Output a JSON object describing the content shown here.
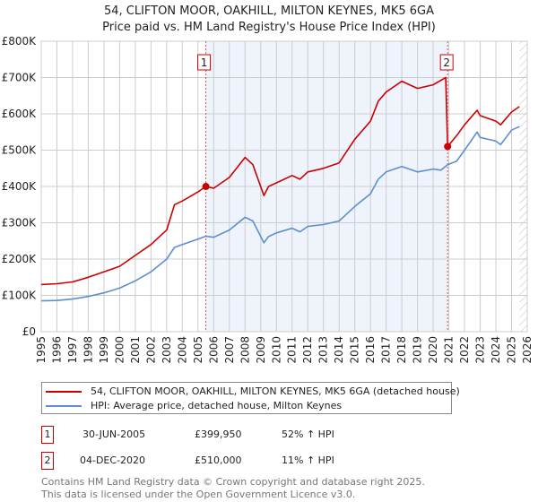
{
  "chart_data": {
    "type": "line",
    "title": "54, CLIFTON MOOR, OAKHILL, MILTON KEYNES, MK5 6GA",
    "subtitle": "Price paid vs. HM Land Registry's House Price Index (HPI)",
    "xlim": [
      1995,
      2026
    ],
    "ylim": [
      0,
      800000
    ],
    "x_ticks": [
      "1995",
      "1996",
      "1997",
      "1998",
      "1999",
      "2000",
      "2001",
      "2002",
      "2003",
      "2004",
      "2005",
      "2006",
      "2007",
      "2008",
      "2009",
      "2010",
      "2011",
      "2012",
      "2013",
      "2014",
      "2015",
      "2016",
      "2017",
      "2018",
      "2019",
      "2020",
      "2021",
      "2022",
      "2023",
      "2024",
      "2025",
      "2026"
    ],
    "y_ticks": [
      {
        "value": 0,
        "label": "£0"
      },
      {
        "value": 100000,
        "label": "£100K"
      },
      {
        "value": 200000,
        "label": "£200K"
      },
      {
        "value": 300000,
        "label": "£300K"
      },
      {
        "value": 400000,
        "label": "£400K"
      },
      {
        "value": 500000,
        "label": "£500K"
      },
      {
        "value": 600000,
        "label": "£600K"
      },
      {
        "value": 700000,
        "label": "£700K"
      },
      {
        "value": 800000,
        "label": "£800K"
      }
    ],
    "grid": true,
    "series": [
      {
        "name": "54, CLIFTON MOOR, OAKHILL, MILTON KEYNES, MK5 6GA (detached house)",
        "color": "#cc0000",
        "x": [
          1995,
          1996,
          1997,
          1998,
          1999,
          2000,
          2001,
          2002,
          2003,
          2003.5,
          2004,
          2005,
          2005.5,
          2006,
          2007,
          2008,
          2008.5,
          2009.2,
          2009.5,
          2010,
          2011,
          2011.5,
          2012,
          2013,
          2014,
          2015,
          2016,
          2016.5,
          2017,
          2018,
          2019,
          2020,
          2020.8,
          2020.92,
          2021.5,
          2022,
          2022.8,
          2023,
          2024,
          2024.3,
          2025,
          2025.5
        ],
        "y": [
          130000,
          132000,
          137000,
          150000,
          165000,
          180000,
          210000,
          240000,
          280000,
          350000,
          360000,
          385000,
          399950,
          395000,
          425000,
          480000,
          460000,
          375000,
          400000,
          410000,
          430000,
          420000,
          440000,
          450000,
          465000,
          530000,
          580000,
          635000,
          660000,
          690000,
          670000,
          680000,
          700000,
          510000,
          540000,
          570000,
          610000,
          595000,
          580000,
          570000,
          605000,
          620000
        ]
      },
      {
        "name": "HPI: Average price, detached house, Milton Keynes",
        "color": "#5b8fd0",
        "x": [
          1995,
          1996,
          1997,
          1998,
          1999,
          2000,
          2001,
          2002,
          2003,
          2003.5,
          2004,
          2005,
          2005.5,
          2006,
          2007,
          2008,
          2008.5,
          2009.2,
          2009.5,
          2010,
          2011,
          2011.5,
          2012,
          2013,
          2014,
          2015,
          2016,
          2016.5,
          2017,
          2018,
          2019,
          2020,
          2020.5,
          2020.92,
          2021.5,
          2022,
          2022.8,
          2023,
          2024,
          2024.3,
          2025,
          2025.5
        ],
        "y": [
          85000,
          86000,
          90000,
          97000,
          107000,
          120000,
          140000,
          165000,
          200000,
          232000,
          240000,
          255000,
          263000,
          260000,
          280000,
          315000,
          305000,
          245000,
          262000,
          272000,
          285000,
          275000,
          290000,
          295000,
          305000,
          345000,
          380000,
          420000,
          440000,
          455000,
          440000,
          448000,
          445000,
          460000,
          470000,
          500000,
          550000,
          535000,
          525000,
          515000,
          555000,
          565000
        ]
      }
    ],
    "sales": [
      {
        "label": "1",
        "x": 2005.5,
        "y": 399950,
        "date": "30-JUN-2005",
        "price": "£399,950",
        "hpi": "52% ↑ HPI"
      },
      {
        "label": "2",
        "x": 2020.92,
        "y": 510000,
        "date": "04-DEC-2020",
        "price": "£510,000",
        "hpi": "11% ↑ HPI"
      }
    ],
    "hatch_from": 2025.5,
    "legend_position": "below"
  },
  "legend": {
    "property": "54, CLIFTON MOOR, OAKHILL, MILTON KEYNES, MK5 6GA (detached house)",
    "hpi": "HPI: Average price, detached house, Milton Keynes"
  },
  "footer": {
    "line1": "Contains HM Land Registry data © Crown copyright and database right 2025.",
    "line2": "This data is licensed under the Open Government Licence v3.0."
  }
}
